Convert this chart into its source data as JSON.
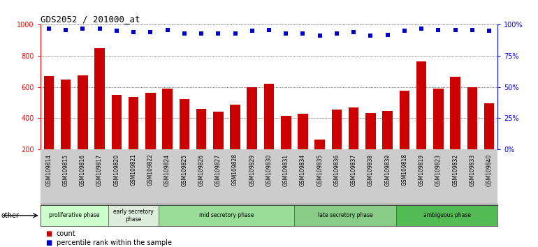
{
  "title": "GDS2052 / 201000_at",
  "samples": [
    "GSM109814",
    "GSM109815",
    "GSM109816",
    "GSM109817",
    "GSM109820",
    "GSM109821",
    "GSM109822",
    "GSM109824",
    "GSM109825",
    "GSM109826",
    "GSM109827",
    "GSM109828",
    "GSM109829",
    "GSM109830",
    "GSM109831",
    "GSM109834",
    "GSM109835",
    "GSM109836",
    "GSM109837",
    "GSM109838",
    "GSM109839",
    "GSM109818",
    "GSM109819",
    "GSM109823",
    "GSM109832",
    "GSM109833",
    "GSM109840"
  ],
  "counts": [
    670,
    648,
    676,
    848,
    548,
    535,
    562,
    588,
    525,
    461,
    442,
    489,
    600,
    622,
    416,
    430,
    265,
    455,
    468,
    432,
    447,
    578,
    766,
    592,
    665,
    600,
    498
  ],
  "percentile_ranks": [
    97,
    96,
    97,
    97,
    95,
    94,
    94,
    96,
    93,
    93,
    93,
    93,
    95,
    96,
    93,
    93,
    91,
    93,
    94,
    91,
    92,
    95,
    97,
    96,
    96,
    96,
    95
  ],
  "bar_color": "#cc0000",
  "dot_color": "#0000cc",
  "ylim_left": [
    200,
    1000
  ],
  "ylim_right": [
    0,
    100
  ],
  "yticks_left": [
    200,
    400,
    600,
    800,
    1000
  ],
  "yticks_right": [
    0,
    25,
    50,
    75,
    100
  ],
  "phases": [
    {
      "label": "proliferative phase",
      "start": 0,
      "end": 4,
      "color": "#ccffcc"
    },
    {
      "label": "early secretory\nphase",
      "start": 4,
      "end": 7,
      "color": "#ddeedd"
    },
    {
      "label": "mid secretory phase",
      "start": 7,
      "end": 15,
      "color": "#99dd99"
    },
    {
      "label": "late secretory phase",
      "start": 15,
      "end": 21,
      "color": "#88cc88"
    },
    {
      "label": "ambiguous phase",
      "start": 21,
      "end": 27,
      "color": "#55bb55"
    }
  ],
  "legend_count_label": "count",
  "legend_pct_label": "percentile rank within the sample",
  "other_label": "other"
}
